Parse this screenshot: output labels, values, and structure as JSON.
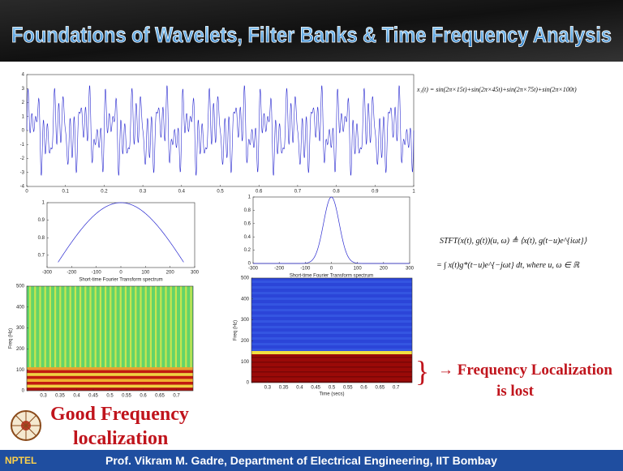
{
  "header": {
    "title": "Foundations of Wavelets, Filter Banks & Time Frequency Analysis"
  },
  "signal_plot": {
    "xlim": [
      0,
      1
    ],
    "ylim": [
      -4,
      4
    ],
    "xticks": [
      0,
      0.1,
      0.2,
      0.3,
      0.4,
      0.5,
      0.6,
      0.7,
      0.8,
      0.9,
      1
    ],
    "yticks": [
      -4,
      -3,
      -2,
      -1,
      0,
      1,
      2,
      3,
      4
    ],
    "frequencies": [
      15,
      45,
      75,
      100
    ],
    "equation": "x₁(t) = sin(2π×15t)+sin(2π×45t)+sin(2π×75t)+sin(2π×100t)"
  },
  "wide_window": {
    "xlim": [
      -300,
      300
    ],
    "ylim": [
      0.63,
      1.0
    ],
    "xticks": [
      -300,
      -200,
      -100,
      0,
      100,
      200,
      300
    ],
    "yticks": [
      0.7,
      0.8,
      0.9,
      1
    ],
    "caption": "Short-time Fourier Transform spectrum"
  },
  "narrow_window": {
    "xlim": [
      -300,
      300
    ],
    "ylim": [
      0,
      1
    ],
    "xticks": [
      -300,
      -200,
      -100,
      0,
      100,
      200,
      300
    ],
    "yticks": [
      0,
      0.2,
      0.4,
      0.6,
      0.8,
      1
    ],
    "caption": "Short-time Fourier Transform spectrum"
  },
  "spectrogram_wide": {
    "xlim": [
      0.25,
      0.75
    ],
    "ylim": [
      0,
      500
    ],
    "xticks": [
      0.3,
      0.35,
      0.4,
      0.45,
      0.5,
      0.55,
      0.6,
      0.65,
      0.7
    ],
    "yticks": [
      0,
      100,
      200,
      300,
      400,
      500
    ],
    "ylabel": "Freq (Hz)"
  },
  "spectrogram_narrow": {
    "xlim": [
      0.25,
      0.75
    ],
    "ylim": [
      0,
      500
    ],
    "xticks": [
      0.3,
      0.35,
      0.4,
      0.45,
      0.5,
      0.55,
      0.6,
      0.65,
      0.7
    ],
    "yticks": [
      0,
      100,
      200,
      300,
      400,
      500
    ],
    "ylabel": "Freq (Hz)",
    "xlabel": "Time (secs)"
  },
  "stft_definition": {
    "line1": "STFT(x(t), g(t))(u, ω) ≜ ⟨x(t), g(t−u)e^{iωt}⟩",
    "line2": "= ∫ x(t)g*(t−u)e^{−jωt} dt, where u, ω ∈ ℝ"
  },
  "annotations": {
    "lost": [
      "→ Frequency Localization",
      "is lost"
    ],
    "good": [
      "Good Frequency",
      "localization"
    ]
  },
  "footer": {
    "logo": "NPTEL",
    "credit": "Prof. Vikram M. Gadre, Department of Electrical Engineering, IIT Bombay"
  }
}
